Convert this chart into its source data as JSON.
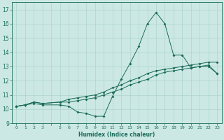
{
  "xlabel": "Humidex (Indice chaleur)",
  "bg_color": "#cce8e4",
  "grid_color": "#aed4ce",
  "line_color": "#1a6b5a",
  "ylim": [
    9,
    17.5
  ],
  "yticks": [
    9,
    10,
    11,
    12,
    13,
    14,
    15,
    16,
    17
  ],
  "xlim": [
    -0.5,
    23.5
  ],
  "series1_x": [
    0,
    1,
    2,
    3,
    5,
    6,
    7,
    8,
    9,
    10,
    11,
    12,
    13,
    14,
    15,
    16,
    17,
    18,
    19,
    20,
    21,
    22,
    23
  ],
  "series1_y": [
    10.2,
    10.3,
    10.4,
    10.3,
    10.3,
    10.2,
    9.8,
    9.7,
    9.5,
    9.5,
    10.9,
    12.1,
    13.2,
    14.4,
    16.0,
    16.8,
    16.0,
    13.8,
    13.8,
    12.9,
    13.0,
    13.0,
    12.5
  ],
  "series2_x": [
    0,
    1,
    2,
    3,
    5,
    6,
    7,
    8,
    9,
    10,
    11,
    12,
    13,
    14,
    15,
    16,
    17,
    18,
    19,
    20,
    21,
    22,
    23
  ],
  "series2_y": [
    10.2,
    10.3,
    10.5,
    10.4,
    10.5,
    10.7,
    10.8,
    10.9,
    11.0,
    11.2,
    11.5,
    11.7,
    12.0,
    12.2,
    12.5,
    12.7,
    12.8,
    12.9,
    13.0,
    13.1,
    13.2,
    13.3,
    13.3
  ],
  "series3_x": [
    0,
    1,
    2,
    3,
    5,
    6,
    7,
    8,
    9,
    10,
    11,
    12,
    13,
    14,
    15,
    16,
    17,
    18,
    19,
    20,
    21,
    22,
    23
  ],
  "series3_y": [
    10.2,
    10.3,
    10.5,
    10.4,
    10.5,
    10.5,
    10.6,
    10.7,
    10.8,
    11.0,
    11.2,
    11.4,
    11.7,
    11.9,
    12.1,
    12.4,
    12.6,
    12.7,
    12.8,
    12.9,
    13.0,
    13.1,
    12.5
  ]
}
